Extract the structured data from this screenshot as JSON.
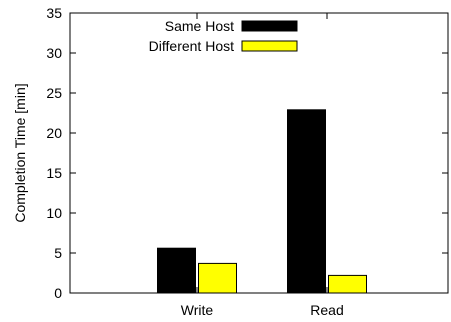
{
  "chart_data": {
    "type": "bar",
    "title": "",
    "xlabel": "",
    "ylabel": "Completion Time [min]",
    "categories": [
      "Write",
      "Read"
    ],
    "series": [
      {
        "name": "Same Host",
        "values": [
          5.6,
          22.9
        ],
        "color": "#000000"
      },
      {
        "name": "Different Host",
        "values": [
          3.7,
          2.2
        ],
        "color": "#ffff00"
      }
    ],
    "ylim": [
      0,
      35
    ],
    "yticks": [
      0,
      5,
      10,
      15,
      20,
      25,
      30,
      35
    ],
    "grid": false,
    "legend_position": "top-right"
  }
}
